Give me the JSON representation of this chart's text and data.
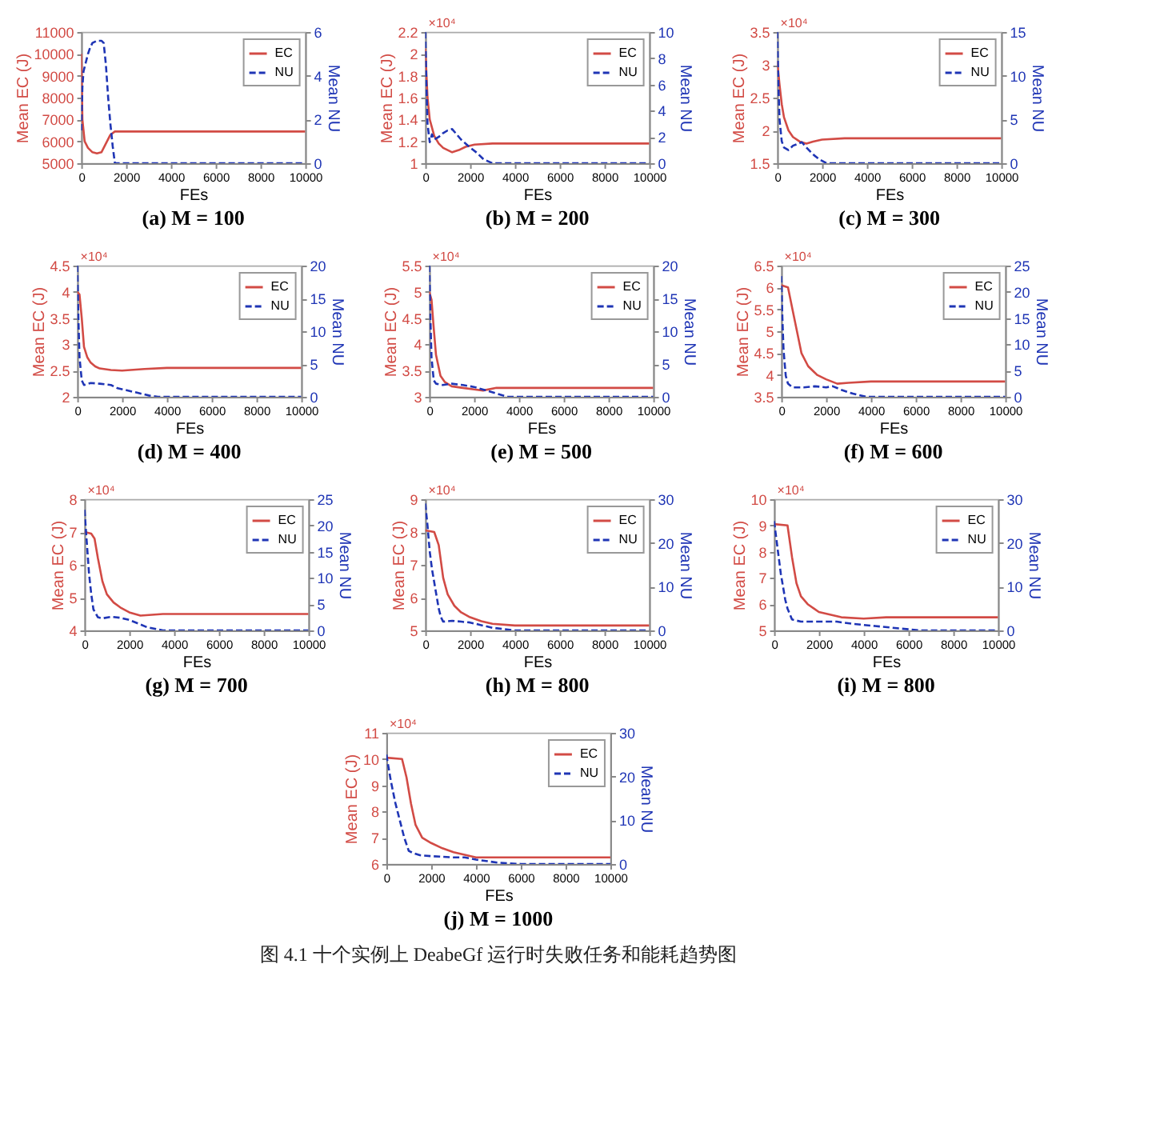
{
  "chart_data": [
    {
      "type": "line",
      "title": "(a)  M = 100",
      "xlabel": "FEs",
      "ylabel": "Mean EC (J)",
      "y2label": "Mean NU",
      "xlim": [
        0,
        10000
      ],
      "xticks": [
        0,
        2000,
        4000,
        6000,
        8000,
        10000
      ],
      "ylim": [
        5000,
        11000
      ],
      "yticks": [
        5000,
        6000,
        7000,
        8000,
        9000,
        10000,
        11000
      ],
      "y2lim": [
        0,
        6
      ],
      "y2ticks": [
        0,
        2,
        4,
        6
      ],
      "legend": "top right",
      "series": [
        {
          "name": "EC",
          "color": "#d24b45",
          "line_style": "solid",
          "x": [
            0,
            50,
            150,
            300,
            500,
            700,
            900,
            1100,
            1300,
            1500,
            2000,
            10000
          ],
          "values": [
            10000,
            7000,
            6000,
            5700,
            5500,
            5450,
            5500,
            5900,
            6300,
            6450,
            6450,
            6450
          ]
        },
        {
          "name": "NU",
          "color": "#1f35b5",
          "line_style": "dashed",
          "axis": "y2",
          "x": [
            0,
            50,
            100,
            200,
            300,
            400,
            500,
            700,
            900,
            1000,
            1100,
            1200,
            1300,
            1400,
            1500,
            10000
          ],
          "values": [
            1.5,
            3.5,
            4.2,
            4.6,
            5,
            5.3,
            5.5,
            5.6,
            5.6,
            5.5,
            4.5,
            3,
            1.8,
            0.8,
            0,
            0
          ]
        }
      ]
    },
    {
      "type": "line",
      "title": "(b)  M = 200",
      "xlabel": "FEs",
      "ylabel": "Mean EC (J)",
      "y2label": "Mean NU",
      "annotations": [
        "×10⁴"
      ],
      "xlim": [
        0,
        10000
      ],
      "xticks": [
        0,
        2000,
        4000,
        6000,
        8000,
        10000
      ],
      "ylim": [
        1,
        2.2
      ],
      "yticks": [
        1,
        1.2,
        1.4,
        1.6,
        1.8,
        2,
        2.2
      ],
      "y2lim": [
        0,
        10
      ],
      "y2ticks": [
        0,
        2,
        4,
        6,
        8,
        10
      ],
      "legend": "top right",
      "series": [
        {
          "name": "EC",
          "color": "#d24b45",
          "line_style": "solid",
          "x": [
            0,
            100,
            200,
            400,
            600,
            800,
            1000,
            1200,
            1500,
            1800,
            2200,
            3000,
            10000
          ],
          "values": [
            2.05,
            1.6,
            1.4,
            1.25,
            1.18,
            1.14,
            1.12,
            1.1,
            1.12,
            1.15,
            1.17,
            1.18,
            1.18
          ]
        },
        {
          "name": "NU",
          "color": "#1f35b5",
          "line_style": "dashed",
          "axis": "y2",
          "x": [
            0,
            50,
            100,
            200,
            300,
            400,
            600,
            800,
            1000,
            1200,
            1400,
            1600,
            1800,
            2000,
            2300,
            2600,
            3000,
            10000
          ],
          "values": [
            10,
            6,
            3,
            1.6,
            2.2,
            1.8,
            2,
            2.3,
            2.5,
            2.6,
            2.2,
            1.8,
            1.5,
            1.2,
            0.8,
            0.3,
            0,
            0
          ]
        }
      ]
    },
    {
      "type": "line",
      "title": "(c)  M = 300",
      "xlabel": "FEs",
      "ylabel": "Mean EC (J)",
      "y2label": "Mean NU",
      "annotations": [
        "×10⁴"
      ],
      "xlim": [
        0,
        10000
      ],
      "xticks": [
        0,
        2000,
        4000,
        6000,
        8000,
        10000
      ],
      "ylim": [
        1.5,
        3.5
      ],
      "yticks": [
        1.5,
        2,
        2.5,
        3,
        3.5
      ],
      "y2lim": [
        0,
        15
      ],
      "y2ticks": [
        0,
        5,
        10,
        15
      ],
      "legend": "top right",
      "series": [
        {
          "name": "EC",
          "color": "#d24b45",
          "line_style": "solid",
          "x": [
            0,
            100,
            200,
            300,
            500,
            700,
            1000,
            1300,
            1600,
            2000,
            3000,
            10000
          ],
          "values": [
            3.05,
            2.7,
            2.4,
            2.2,
            2.0,
            1.9,
            1.83,
            1.8,
            1.83,
            1.86,
            1.88,
            1.88
          ]
        },
        {
          "name": "NU",
          "color": "#1f35b5",
          "line_style": "dashed",
          "axis": "y2",
          "x": [
            0,
            50,
            100,
            200,
            300,
            500,
            700,
            900,
            1100,
            1300,
            1600,
            1900,
            2200,
            10000
          ],
          "values": [
            15,
            9,
            5,
            2.5,
            1.8,
            1.5,
            2,
            2.2,
            2.4,
            1.8,
            1,
            0.4,
            0,
            0
          ]
        }
      ]
    },
    {
      "type": "line",
      "title": "(d)  M = 400",
      "xlabel": "FEs",
      "ylabel": "Mean EC (J)",
      "y2label": "Mean NU",
      "annotations": [
        "×10⁴"
      ],
      "xlim": [
        0,
        10000
      ],
      "xticks": [
        0,
        2000,
        4000,
        6000,
        8000,
        10000
      ],
      "ylim": [
        2,
        4.5
      ],
      "yticks": [
        2,
        2.5,
        3,
        3.5,
        4,
        4.5
      ],
      "y2lim": [
        0,
        20
      ],
      "y2ticks": [
        0,
        5,
        10,
        15,
        20
      ],
      "legend": "top right",
      "series": [
        {
          "name": "EC",
          "color": "#d24b45",
          "line_style": "solid",
          "x": [
            0,
            100,
            200,
            300,
            450,
            600,
            800,
            1000,
            1500,
            2000,
            3000,
            4000,
            10000
          ],
          "values": [
            4.0,
            3.95,
            3.5,
            2.95,
            2.75,
            2.65,
            2.58,
            2.54,
            2.51,
            2.5,
            2.53,
            2.55,
            2.55
          ]
        },
        {
          "name": "NU",
          "color": "#1f35b5",
          "line_style": "dashed",
          "axis": "y2",
          "x": [
            0,
            50,
            100,
            200,
            300,
            600,
            1000,
            1500,
            1800,
            2200,
            2700,
            3200,
            3600,
            10000
          ],
          "values": [
            20,
            12,
            6,
            2.5,
            1.8,
            2.1,
            2,
            1.8,
            1.3,
            1,
            0.6,
            0.2,
            0,
            0
          ]
        }
      ]
    },
    {
      "type": "line",
      "title": "(e)  M = 500",
      "xlabel": "FEs",
      "ylabel": "Mean EC (J)",
      "y2label": "Mean NU",
      "annotations": [
        "×10⁴"
      ],
      "xlim": [
        0,
        10000
      ],
      "xticks": [
        0,
        2000,
        4000,
        6000,
        8000,
        10000
      ],
      "ylim": [
        3,
        5.5
      ],
      "yticks": [
        3,
        3.5,
        4,
        4.5,
        5,
        5.5
      ],
      "y2lim": [
        0,
        20
      ],
      "y2ticks": [
        0,
        5,
        10,
        15,
        20
      ],
      "legend": "top right",
      "series": [
        {
          "name": "EC",
          "color": "#d24b45",
          "line_style": "solid",
          "x": [
            0,
            100,
            200,
            300,
            500,
            700,
            1000,
            1500,
            2000,
            2400,
            3000,
            10000
          ],
          "values": [
            5.0,
            4.85,
            4.3,
            3.8,
            3.4,
            3.28,
            3.2,
            3.17,
            3.14,
            3.12,
            3.17,
            3.17
          ]
        },
        {
          "name": "NU",
          "color": "#1f35b5",
          "line_style": "dashed",
          "axis": "y2",
          "x": [
            0,
            50,
            100,
            200,
            300,
            600,
            1000,
            1500,
            2000,
            2500,
            3000,
            3500,
            10000
          ],
          "values": [
            20,
            12,
            6,
            2.5,
            2,
            1.8,
            2,
            1.8,
            1.5,
            1,
            0.5,
            0,
            0
          ]
        }
      ]
    },
    {
      "type": "line",
      "title": "(f)  M = 600",
      "xlabel": "FEs",
      "ylabel": "Mean EC (J)",
      "y2label": "Mean NU",
      "annotations": [
        "×10⁴"
      ],
      "xlim": [
        0,
        10000
      ],
      "xticks": [
        0,
        2000,
        4000,
        6000,
        8000,
        10000
      ],
      "ylim": [
        3.5,
        6.5
      ],
      "yticks": [
        3.5,
        4,
        4.5,
        5,
        5.5,
        6,
        6.5
      ],
      "y2lim": [
        0,
        25
      ],
      "y2ticks": [
        0,
        5,
        10,
        15,
        20,
        25
      ],
      "legend": "top right",
      "series": [
        {
          "name": "EC",
          "color": "#d24b45",
          "line_style": "solid",
          "x": [
            0,
            300,
            500,
            700,
            900,
            1200,
            1600,
            2000,
            2500,
            3000,
            4000,
            10000
          ],
          "values": [
            6.05,
            6.0,
            5.5,
            5.0,
            4.5,
            4.2,
            4.0,
            3.9,
            3.8,
            3.82,
            3.85,
            3.85
          ]
        },
        {
          "name": "NU",
          "color": "#1f35b5",
          "line_style": "dashed",
          "axis": "y2",
          "x": [
            0,
            50,
            100,
            200,
            300,
            500,
            1000,
            1500,
            2000,
            2300,
            2700,
            3200,
            3800,
            10000
          ],
          "values": [
            23,
            15,
            9,
            4,
            2.5,
            1.8,
            1.8,
            2,
            1.8,
            2,
            1.3,
            0.6,
            0,
            0
          ]
        }
      ]
    },
    {
      "type": "line",
      "title": "(g)  M = 700",
      "xlabel": "FEs",
      "ylabel": "Mean EC (J)",
      "y2label": "Mean NU",
      "annotations": [
        "×10⁴"
      ],
      "xlim": [
        0,
        10000
      ],
      "xticks": [
        0,
        2000,
        4000,
        6000,
        8000,
        10000
      ],
      "ylim": [
        4,
        8
      ],
      "yticks": [
        4,
        5,
        6,
        7,
        8
      ],
      "y2lim": [
        0,
        25
      ],
      "y2ticks": [
        0,
        5,
        10,
        15,
        20,
        25
      ],
      "legend": "top right",
      "series": [
        {
          "name": "EC",
          "color": "#d24b45",
          "line_style": "solid",
          "x": [
            0,
            300,
            450,
            600,
            800,
            1000,
            1300,
            1600,
            2000,
            2500,
            3500,
            10000
          ],
          "values": [
            7.0,
            6.95,
            6.8,
            6.2,
            5.5,
            5.1,
            4.85,
            4.7,
            4.55,
            4.45,
            4.5,
            4.5
          ]
        },
        {
          "name": "NU",
          "color": "#1f35b5",
          "line_style": "dashed",
          "axis": "y2",
          "x": [
            0,
            100,
            200,
            300,
            400,
            600,
            800,
            1200,
            1600,
            2000,
            2400,
            2800,
            3500,
            10000
          ],
          "values": [
            23,
            17,
            11,
            7,
            4,
            2.5,
            2.3,
            2.6,
            2.4,
            2,
            1.3,
            0.6,
            0,
            0
          ]
        }
      ]
    },
    {
      "type": "line",
      "title": "(h)  M = 800",
      "xlabel": "FEs",
      "ylabel": "Mean EC (J)",
      "y2label": "Mean NU",
      "annotations": [
        "×10⁴"
      ],
      "xlim": [
        0,
        10000
      ],
      "xticks": [
        0,
        2000,
        4000,
        6000,
        8000,
        10000
      ],
      "ylim": [
        5,
        9
      ],
      "yticks": [
        5,
        6,
        7,
        8,
        9
      ],
      "y2lim": [
        0,
        30
      ],
      "y2ticks": [
        0,
        10,
        20,
        30
      ],
      "legend": "top right",
      "series": [
        {
          "name": "EC",
          "color": "#d24b45",
          "line_style": "solid",
          "x": [
            0,
            400,
            600,
            800,
            1000,
            1300,
            1600,
            2000,
            2500,
            3000,
            4000,
            10000
          ],
          "values": [
            8.05,
            8.0,
            7.6,
            6.6,
            6.1,
            5.75,
            5.55,
            5.4,
            5.28,
            5.2,
            5.15,
            5.15
          ]
        },
        {
          "name": "NU",
          "color": "#1f35b5",
          "line_style": "dashed",
          "axis": "y2",
          "x": [
            0,
            100,
            200,
            300,
            400,
            500,
            600,
            700,
            800,
            1200,
            1600,
            2000,
            2500,
            3000,
            4000,
            10000
          ],
          "values": [
            29,
            24,
            18,
            14,
            11,
            8,
            5,
            3,
            2,
            2.2,
            2,
            1.8,
            1.2,
            0.6,
            0,
            0
          ]
        }
      ]
    },
    {
      "type": "line",
      "title": "(i)  M = 800",
      "xlabel": "FEs",
      "ylabel": "Mean EC (J)",
      "y2label": "Mean NU",
      "annotations": [
        "×10⁴"
      ],
      "xlim": [
        0,
        10000
      ],
      "xticks": [
        0,
        2000,
        4000,
        6000,
        8000,
        10000
      ],
      "ylim": [
        5,
        10
      ],
      "yticks": [
        5,
        6,
        7,
        8,
        9,
        10
      ],
      "y2lim": [
        0,
        30
      ],
      "y2ticks": [
        0,
        10,
        20,
        30
      ],
      "legend": "top right",
      "series": [
        {
          "name": "EC",
          "color": "#d24b45",
          "line_style": "solid",
          "x": [
            0,
            600,
            800,
            1000,
            1200,
            1500,
            2000,
            2500,
            3000,
            4000,
            5000,
            10000
          ],
          "values": [
            9.05,
            9.0,
            7.8,
            6.8,
            6.3,
            6.0,
            5.7,
            5.6,
            5.5,
            5.45,
            5.5,
            5.5
          ]
        },
        {
          "name": "NU",
          "color": "#1f35b5",
          "line_style": "dashed",
          "axis": "y2",
          "x": [
            0,
            100,
            200,
            300,
            400,
            500,
            600,
            800,
            1200,
            2000,
            2800,
            3500,
            4500,
            5500,
            6500,
            10000
          ],
          "values": [
            25,
            21,
            17,
            13,
            10,
            7,
            5,
            2.5,
            2,
            2,
            2,
            1.5,
            1,
            0.5,
            0,
            0
          ]
        }
      ]
    },
    {
      "type": "line",
      "title": "(j)  M = 1000",
      "subtitle": "图 4.1  十个实例上 DeabeGf 运行时失败任务和能耗趋势图",
      "xlabel": "FEs",
      "ylabel": "Mean EC (J)",
      "y2label": "Mean NU",
      "annotations": [
        "×10⁴"
      ],
      "xlim": [
        0,
        10000
      ],
      "xticks": [
        0,
        2000,
        4000,
        6000,
        8000,
        10000
      ],
      "ylim": [
        6,
        11
      ],
      "yticks": [
        6,
        7,
        8,
        9,
        10,
        11
      ],
      "y2lim": [
        0,
        30
      ],
      "y2ticks": [
        0,
        10,
        20,
        30
      ],
      "legend": "top right",
      "series": [
        {
          "name": "EC",
          "color": "#d24b45",
          "line_style": "solid",
          "x": [
            0,
            700,
            900,
            1100,
            1300,
            1600,
            2000,
            2500,
            3000,
            3500,
            4000,
            5000,
            10000
          ],
          "values": [
            10.05,
            10.0,
            9.3,
            8.3,
            7.5,
            7.0,
            6.8,
            6.6,
            6.45,
            6.35,
            6.25,
            6.25,
            6.25
          ]
        },
        {
          "name": "NU",
          "color": "#1f35b5",
          "line_style": "dashed",
          "axis": "y2",
          "x": [
            0,
            200,
            400,
            600,
            800,
            1000,
            1200,
            1500,
            2000,
            3000,
            3500,
            4000,
            5000,
            6000,
            10000
          ],
          "values": [
            25,
            19,
            14,
            10,
            6,
            3,
            2.5,
            2,
            1.8,
            1.5,
            1.5,
            1,
            0.3,
            0,
            0
          ]
        }
      ]
    }
  ]
}
